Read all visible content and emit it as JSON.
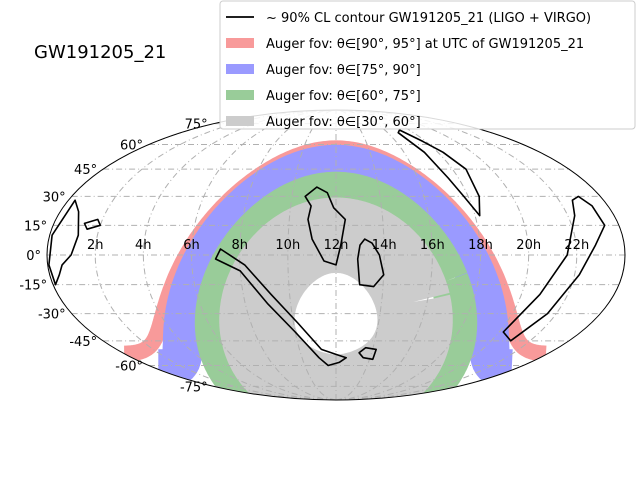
{
  "chart_data": {
    "type": "area",
    "projection": "mollweide",
    "title": "GW191205_21",
    "grid": true,
    "legend_position": "top-right",
    "ra_tick_labels": [
      "2h",
      "4h",
      "6h",
      "8h",
      "10h",
      "12h",
      "14h",
      "16h",
      "18h",
      "20h",
      "22h"
    ],
    "ra_tick_hours": [
      2,
      4,
      6,
      8,
      10,
      12,
      14,
      16,
      18,
      20,
      22
    ],
    "dec_tick_labels": [
      "75°",
      "60°",
      "45°",
      "30°",
      "15°",
      "0°",
      "-15°",
      "-30°",
      "-45°",
      "-60°",
      "-75°"
    ],
    "dec_tick_degrees": [
      75,
      60,
      45,
      30,
      15,
      0,
      -15,
      -30,
      -45,
      -60,
      -75
    ],
    "series": [
      {
        "name": "~ 90% CL contour GW191205_21 (LIGO + VIRGO)",
        "kind": "contour",
        "color": "#000000"
      },
      {
        "name": "Auger fov: θ∈[90°, 95°] at UTC of GW191205_21",
        "kind": "band",
        "color": "#f89a9a",
        "zenith_range_deg": [
          90,
          95
        ]
      },
      {
        "name": "Auger fov: θ∈[75°, 90°]",
        "kind": "band",
        "color": "#9a9aff",
        "zenith_range_deg": [
          75,
          90
        ]
      },
      {
        "name": "Auger fov: θ∈[60°, 75°]",
        "kind": "band",
        "color": "#99cc99",
        "zenith_range_deg": [
          60,
          75
        ]
      },
      {
        "name": "Auger fov: θ∈[30°, 60°]",
        "kind": "band",
        "color": "#cccccc",
        "zenith_range_deg": [
          30,
          60
        ]
      }
    ],
    "contour_regions": [
      {
        "label": "northern blob",
        "ra_dec": [
          [
            10.9,
            25
          ],
          [
            10.6,
            30
          ],
          [
            11.1,
            35
          ],
          [
            11.6,
            32
          ],
          [
            11.9,
            24
          ],
          [
            12.4,
            18
          ],
          [
            12.2,
            5
          ],
          [
            12.0,
            -5
          ],
          [
            11.5,
            -3
          ],
          [
            11.0,
            8
          ],
          [
            10.8,
            18
          ]
        ]
      },
      {
        "label": "right blob",
        "ra_dec": [
          [
            13.0,
            5
          ],
          [
            12.9,
            -2
          ],
          [
            13.0,
            -15
          ],
          [
            13.6,
            -16
          ],
          [
            14.0,
            -10
          ],
          [
            13.8,
            0
          ],
          [
            13.5,
            6
          ],
          [
            13.2,
            8
          ]
        ]
      },
      {
        "label": "southern arc",
        "ra_dec": [
          [
            7.0,
            -2
          ],
          [
            8.0,
            -8
          ],
          [
            9.0,
            -25
          ],
          [
            10.0,
            -40
          ],
          [
            11.0,
            -55
          ],
          [
            11.5,
            -60
          ],
          [
            12.2,
            -58
          ],
          [
            12.6,
            -55
          ],
          [
            12.0,
            -53
          ],
          [
            11.2,
            -50
          ],
          [
            10.2,
            -35
          ],
          [
            9.2,
            -20
          ],
          [
            8.2,
            -5
          ],
          [
            7.2,
            3
          ]
        ]
      },
      {
        "label": "south small",
        "ra_dec": [
          [
            13.3,
            -52
          ],
          [
            13.6,
            -55
          ],
          [
            14.2,
            -56
          ],
          [
            14.2,
            -50
          ],
          [
            13.6,
            -49
          ]
        ]
      },
      {
        "label": "west sliver",
        "ra_dec": [
          [
            0.3,
            28
          ],
          [
            0.8,
            22
          ],
          [
            1.2,
            10
          ],
          [
            1.0,
            0
          ],
          [
            0.6,
            -5
          ],
          [
            0.4,
            -10
          ],
          [
            0.1,
            -15
          ],
          [
            0.05,
            -5
          ],
          [
            0.1,
            10
          ]
        ]
      },
      {
        "label": "west small",
        "ra_dec": [
          [
            1.3,
            16
          ],
          [
            1.8,
            18
          ],
          [
            2.0,
            15
          ],
          [
            1.5,
            13
          ]
        ]
      },
      {
        "label": "east contour",
        "ra_dec": [
          [
            16.8,
            68
          ],
          [
            17.2,
            55
          ],
          [
            17.5,
            40
          ],
          [
            17.8,
            30
          ],
          [
            18.2,
            20
          ],
          [
            18.5,
            30
          ],
          [
            18.7,
            45
          ],
          [
            18.3,
            55
          ],
          [
            17.8,
            62
          ],
          [
            17.2,
            70
          ]
        ]
      },
      {
        "label": "east lower",
        "ra_dec": [
          [
            21.0,
            -45
          ],
          [
            21.6,
            -30
          ],
          [
            22.2,
            -10
          ],
          [
            22.8,
            5
          ],
          [
            23.4,
            15
          ],
          [
            23.3,
            25
          ],
          [
            23.0,
            30
          ],
          [
            22.6,
            28
          ],
          [
            22.3,
            20
          ],
          [
            21.6,
            0
          ],
          [
            20.8,
            -20
          ],
          [
            20.2,
            -40
          ]
        ]
      }
    ]
  }
}
